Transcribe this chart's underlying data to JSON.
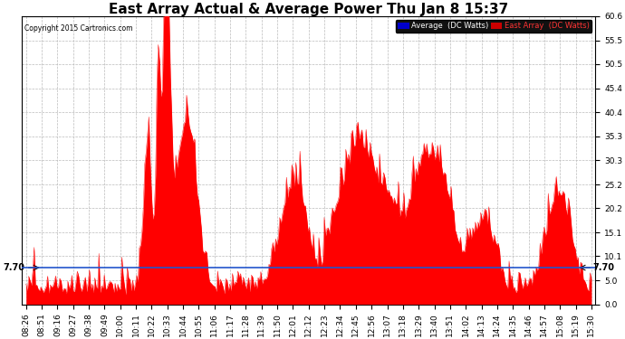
{
  "title": "East Array Actual & Average Power Thu Jan 8 15:37",
  "copyright": "Copyright 2015 Cartronics.com",
  "ylim": [
    0.0,
    60.6
  ],
  "yticks": [
    0.0,
    5.0,
    10.1,
    15.1,
    20.2,
    25.2,
    30.3,
    35.3,
    40.4,
    45.4,
    50.5,
    55.5,
    60.6
  ],
  "average_line_value": 7.7,
  "average_line_label": "7.70",
  "bg_color": "#ffffff",
  "plot_bg_color": "#ffffff",
  "grid_color": "#bbbbbb",
  "fill_color": "#ff0000",
  "line_color": "#ff0000",
  "average_line_color": "#2255cc",
  "legend_avg_bg": "#0000cc",
  "legend_east_bg": "#cc0000",
  "legend_avg_text": "Average  (DC Watts)",
  "legend_east_text": "East Array  (DC Watts)",
  "title_fontsize": 11,
  "tick_fontsize": 6.5,
  "num_points": 420,
  "x_labels": [
    "08:26",
    "08:51",
    "09:16",
    "09:27",
    "09:38",
    "09:49",
    "10:00",
    "10:11",
    "10:22",
    "10:33",
    "10:44",
    "10:55",
    "11:06",
    "11:17",
    "11:28",
    "11:39",
    "11:50",
    "12:01",
    "12:12",
    "12:23",
    "12:34",
    "12:45",
    "12:56",
    "13:07",
    "13:18",
    "13:29",
    "13:40",
    "13:51",
    "14:02",
    "14:13",
    "14:24",
    "14:35",
    "14:46",
    "14:57",
    "15:08",
    "15:19",
    "15:30"
  ]
}
